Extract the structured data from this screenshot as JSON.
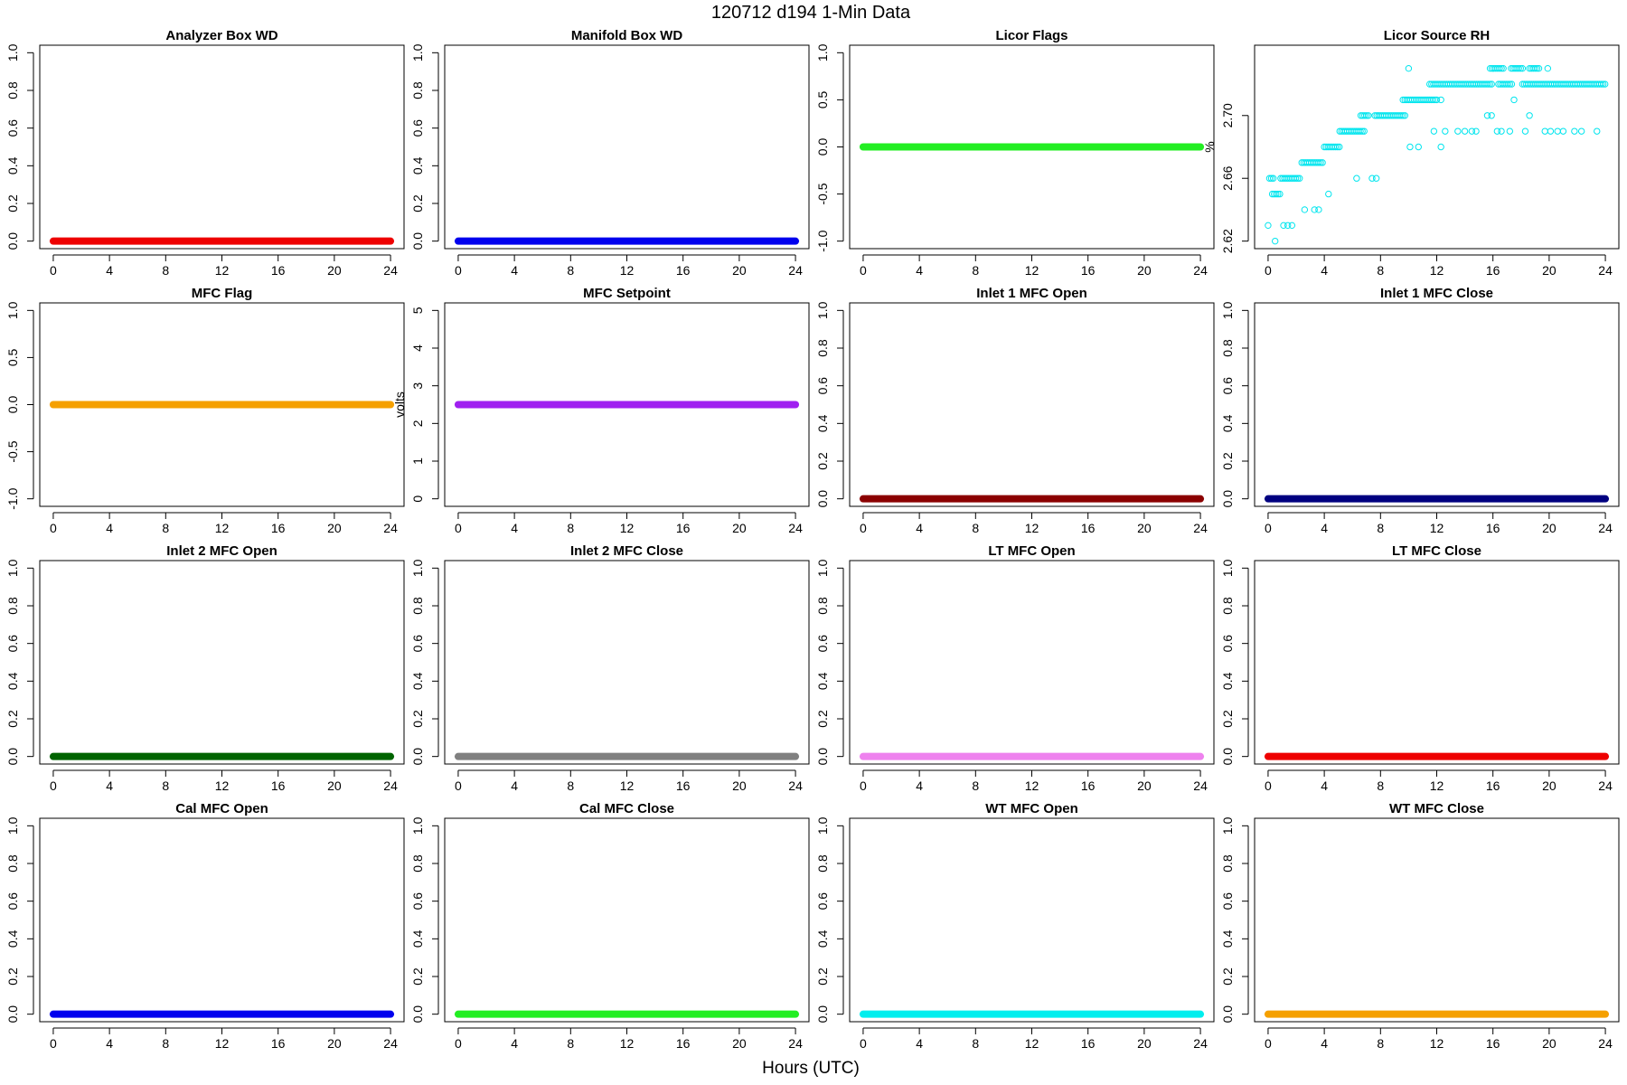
{
  "figure": {
    "title": "120712   d194   1-Min Data",
    "xlabel": "Hours (UTC)"
  },
  "chart_data": [
    {
      "type": "line",
      "title": "Analyzer Box WD",
      "ylabel": "",
      "xlim": [
        0,
        24
      ],
      "ylim": [
        0,
        1
      ],
      "xticks": [
        0,
        4,
        8,
        12,
        16,
        20,
        24
      ],
      "yticks": [
        0.0,
        0.2,
        0.4,
        0.6,
        0.8,
        1.0
      ],
      "ytick_labels": [
        "0.0",
        "0.2",
        "0.4",
        "0.6",
        "0.8",
        "1.0"
      ],
      "grid": false,
      "series": [
        {
          "color": "#ee0000",
          "x": [
            0,
            24
          ],
          "y": [
            0,
            0
          ]
        }
      ]
    },
    {
      "type": "line",
      "title": "Manifold Box WD",
      "ylabel": "",
      "xlim": [
        0,
        24
      ],
      "ylim": [
        0,
        1
      ],
      "xticks": [
        0,
        4,
        8,
        12,
        16,
        20,
        24
      ],
      "yticks": [
        0.0,
        0.2,
        0.4,
        0.6,
        0.8,
        1.0
      ],
      "ytick_labels": [
        "0.0",
        "0.2",
        "0.4",
        "0.6",
        "0.8",
        "1.0"
      ],
      "grid": false,
      "series": [
        {
          "color": "#0000ee",
          "x": [
            0,
            24
          ],
          "y": [
            0,
            0
          ]
        }
      ]
    },
    {
      "type": "line",
      "title": "Licor Flags",
      "ylabel": "",
      "xlim": [
        0,
        24
      ],
      "ylim": [
        -1,
        1
      ],
      "xticks": [
        0,
        4,
        8,
        12,
        16,
        20,
        24
      ],
      "yticks": [
        -1.0,
        -0.5,
        0.0,
        0.5,
        1.0
      ],
      "ytick_labels": [
        "-1.0",
        "-0.5",
        "0.0",
        "0.5",
        "1.0"
      ],
      "grid": false,
      "series": [
        {
          "color": "#22ee22",
          "x": [
            0,
            24
          ],
          "y": [
            0,
            0
          ]
        }
      ]
    },
    {
      "type": "scatter",
      "title": "Licor Source RH",
      "ylabel": "%",
      "xlim": [
        0,
        24
      ],
      "ylim": [
        2.62,
        2.74
      ],
      "xticks": [
        0,
        4,
        8,
        12,
        16,
        20,
        24
      ],
      "yticks": [
        2.62,
        2.66,
        2.7
      ],
      "ytick_labels": [
        "2.62",
        "2.66",
        "2.70"
      ],
      "grid": false,
      "series": [
        {
          "color": "#00e5ee",
          "runs": [
            {
              "x0": 0.1,
              "x1": 0.5,
              "y": 2.66
            },
            {
              "x0": 0.9,
              "x1": 2.3,
              "y": 2.66
            },
            {
              "x0": 0.3,
              "x1": 0.9,
              "y": 2.65
            },
            {
              "x0": 2.4,
              "x1": 3.9,
              "y": 2.67
            },
            {
              "x0": 4.0,
              "x1": 5.2,
              "y": 2.68
            },
            {
              "x0": 5.1,
              "x1": 6.9,
              "y": 2.69
            },
            {
              "x0": 6.6,
              "x1": 7.2,
              "y": 2.7
            },
            {
              "x0": 7.6,
              "x1": 9.8,
              "y": 2.7
            },
            {
              "x0": 9.6,
              "x1": 12.0,
              "y": 2.71
            },
            {
              "x0": 11.5,
              "x1": 16.0,
              "y": 2.72
            },
            {
              "x0": 16.4,
              "x1": 17.4,
              "y": 2.72
            },
            {
              "x0": 18.1,
              "x1": 19.2,
              "y": 2.72
            },
            {
              "x0": 19.3,
              "x1": 24.0,
              "y": 2.72
            },
            {
              "x0": 15.8,
              "x1": 16.8,
              "y": 2.73
            },
            {
              "x0": 17.3,
              "x1": 18.2,
              "y": 2.73
            },
            {
              "x0": 18.6,
              "x1": 19.4,
              "y": 2.73
            }
          ],
          "points": [
            {
              "x": 0.0,
              "y": 2.63
            },
            {
              "x": 0.5,
              "y": 2.62
            },
            {
              "x": 1.1,
              "y": 2.63
            },
            {
              "x": 1.4,
              "y": 2.63
            },
            {
              "x": 1.7,
              "y": 2.63
            },
            {
              "x": 2.6,
              "y": 2.64
            },
            {
              "x": 3.3,
              "y": 2.64
            },
            {
              "x": 3.6,
              "y": 2.64
            },
            {
              "x": 4.3,
              "y": 2.65
            },
            {
              "x": 6.3,
              "y": 2.66
            },
            {
              "x": 7.4,
              "y": 2.66
            },
            {
              "x": 7.7,
              "y": 2.66
            },
            {
              "x": 10.1,
              "y": 2.68
            },
            {
              "x": 10.7,
              "y": 2.68
            },
            {
              "x": 12.3,
              "y": 2.68
            },
            {
              "x": 10.0,
              "y": 2.73
            },
            {
              "x": 11.8,
              "y": 2.69
            },
            {
              "x": 12.6,
              "y": 2.69
            },
            {
              "x": 13.5,
              "y": 2.69
            },
            {
              "x": 14.0,
              "y": 2.69
            },
            {
              "x": 14.5,
              "y": 2.69
            },
            {
              "x": 14.8,
              "y": 2.69
            },
            {
              "x": 12.0,
              "y": 2.71
            },
            {
              "x": 12.3,
              "y": 2.71
            },
            {
              "x": 15.6,
              "y": 2.7
            },
            {
              "x": 15.9,
              "y": 2.7
            },
            {
              "x": 16.3,
              "y": 2.69
            },
            {
              "x": 16.6,
              "y": 2.69
            },
            {
              "x": 17.2,
              "y": 2.69
            },
            {
              "x": 18.3,
              "y": 2.69
            },
            {
              "x": 17.5,
              "y": 2.71
            },
            {
              "x": 18.6,
              "y": 2.7
            },
            {
              "x": 19.7,
              "y": 2.69
            },
            {
              "x": 20.6,
              "y": 2.69
            },
            {
              "x": 21.0,
              "y": 2.69
            },
            {
              "x": 21.8,
              "y": 2.69
            },
            {
              "x": 22.3,
              "y": 2.69
            },
            {
              "x": 23.4,
              "y": 2.69
            },
            {
              "x": 20.1,
              "y": 2.69
            },
            {
              "x": 19.9,
              "y": 2.73
            }
          ]
        }
      ]
    },
    {
      "type": "line",
      "title": "MFC Flag",
      "ylabel": "",
      "xlim": [
        0,
        24
      ],
      "ylim": [
        -1,
        1
      ],
      "xticks": [
        0,
        4,
        8,
        12,
        16,
        20,
        24
      ],
      "yticks": [
        -1.0,
        -0.5,
        0.0,
        0.5,
        1.0
      ],
      "ytick_labels": [
        "-1.0",
        "-0.5",
        "0.0",
        "0.5",
        "1.0"
      ],
      "grid": false,
      "series": [
        {
          "color": "#f5a000",
          "x": [
            0,
            24
          ],
          "y": [
            0,
            0
          ]
        }
      ]
    },
    {
      "type": "line",
      "title": "MFC Setpoint",
      "ylabel": "volts",
      "xlim": [
        0,
        24
      ],
      "ylim": [
        0,
        5
      ],
      "xticks": [
        0,
        4,
        8,
        12,
        16,
        20,
        24
      ],
      "yticks": [
        0,
        1,
        2,
        3,
        4,
        5
      ],
      "ytick_labels": [
        "0",
        "1",
        "2",
        "3",
        "4",
        "5"
      ],
      "grid": false,
      "series": [
        {
          "color": "#a020f0",
          "x": [
            0,
            24
          ],
          "y": [
            2.5,
            2.5
          ]
        }
      ]
    },
    {
      "type": "line",
      "title": "Inlet 1 MFC Open",
      "ylabel": "",
      "xlim": [
        0,
        24
      ],
      "ylim": [
        0,
        1
      ],
      "xticks": [
        0,
        4,
        8,
        12,
        16,
        20,
        24
      ],
      "yticks": [
        0.0,
        0.2,
        0.4,
        0.6,
        0.8,
        1.0
      ],
      "ytick_labels": [
        "0.0",
        "0.2",
        "0.4",
        "0.6",
        "0.8",
        "1.0"
      ],
      "grid": false,
      "series": [
        {
          "color": "#8b0000",
          "x": [
            0,
            24
          ],
          "y": [
            0,
            0
          ]
        }
      ]
    },
    {
      "type": "line",
      "title": "Inlet 1 MFC Close",
      "ylabel": "",
      "xlim": [
        0,
        24
      ],
      "ylim": [
        0,
        1
      ],
      "xticks": [
        0,
        4,
        8,
        12,
        16,
        20,
        24
      ],
      "yticks": [
        0.0,
        0.2,
        0.4,
        0.6,
        0.8,
        1.0
      ],
      "ytick_labels": [
        "0.0",
        "0.2",
        "0.4",
        "0.6",
        "0.8",
        "1.0"
      ],
      "grid": false,
      "series": [
        {
          "color": "#000080",
          "x": [
            0,
            24
          ],
          "y": [
            0,
            0
          ]
        }
      ]
    },
    {
      "type": "line",
      "title": "Inlet 2 MFC Open",
      "ylabel": "",
      "xlim": [
        0,
        24
      ],
      "ylim": [
        0,
        1
      ],
      "xticks": [
        0,
        4,
        8,
        12,
        16,
        20,
        24
      ],
      "yticks": [
        0.0,
        0.2,
        0.4,
        0.6,
        0.8,
        1.0
      ],
      "ytick_labels": [
        "0.0",
        "0.2",
        "0.4",
        "0.6",
        "0.8",
        "1.0"
      ],
      "grid": false,
      "series": [
        {
          "color": "#006400",
          "x": [
            0,
            24
          ],
          "y": [
            0,
            0
          ]
        }
      ]
    },
    {
      "type": "line",
      "title": "Inlet 2 MFC Close",
      "ylabel": "",
      "xlim": [
        0,
        24
      ],
      "ylim": [
        0,
        1
      ],
      "xticks": [
        0,
        4,
        8,
        12,
        16,
        20,
        24
      ],
      "yticks": [
        0.0,
        0.2,
        0.4,
        0.6,
        0.8,
        1.0
      ],
      "ytick_labels": [
        "0.0",
        "0.2",
        "0.4",
        "0.6",
        "0.8",
        "1.0"
      ],
      "grid": false,
      "series": [
        {
          "color": "#808080",
          "x": [
            0,
            24
          ],
          "y": [
            0,
            0
          ]
        }
      ]
    },
    {
      "type": "line",
      "title": "LT MFC Open",
      "ylabel": "",
      "xlim": [
        0,
        24
      ],
      "ylim": [
        0,
        1
      ],
      "xticks": [
        0,
        4,
        8,
        12,
        16,
        20,
        24
      ],
      "yticks": [
        0.0,
        0.2,
        0.4,
        0.6,
        0.8,
        1.0
      ],
      "ytick_labels": [
        "0.0",
        "0.2",
        "0.4",
        "0.6",
        "0.8",
        "1.0"
      ],
      "grid": false,
      "series": [
        {
          "color": "#ee82ee",
          "x": [
            0,
            24
          ],
          "y": [
            0,
            0
          ]
        }
      ]
    },
    {
      "type": "line",
      "title": "LT MFC Close",
      "ylabel": "",
      "xlim": [
        0,
        24
      ],
      "ylim": [
        0,
        1
      ],
      "xticks": [
        0,
        4,
        8,
        12,
        16,
        20,
        24
      ],
      "yticks": [
        0.0,
        0.2,
        0.4,
        0.6,
        0.8,
        1.0
      ],
      "ytick_labels": [
        "0.0",
        "0.2",
        "0.4",
        "0.6",
        "0.8",
        "1.0"
      ],
      "grid": false,
      "series": [
        {
          "color": "#ee0000",
          "x": [
            0,
            24
          ],
          "y": [
            0,
            0
          ]
        }
      ]
    },
    {
      "type": "line",
      "title": "Cal MFC Open",
      "ylabel": "",
      "xlim": [
        0,
        24
      ],
      "ylim": [
        0,
        1
      ],
      "xticks": [
        0,
        4,
        8,
        12,
        16,
        20,
        24
      ],
      "yticks": [
        0.0,
        0.2,
        0.4,
        0.6,
        0.8,
        1.0
      ],
      "ytick_labels": [
        "0.0",
        "0.2",
        "0.4",
        "0.6",
        "0.8",
        "1.0"
      ],
      "grid": false,
      "series": [
        {
          "color": "#0000ee",
          "x": [
            0,
            24
          ],
          "y": [
            0,
            0
          ]
        }
      ]
    },
    {
      "type": "line",
      "title": "Cal MFC Close",
      "ylabel": "",
      "xlim": [
        0,
        24
      ],
      "ylim": [
        0,
        1
      ],
      "xticks": [
        0,
        4,
        8,
        12,
        16,
        20,
        24
      ],
      "yticks": [
        0.0,
        0.2,
        0.4,
        0.6,
        0.8,
        1.0
      ],
      "ytick_labels": [
        "0.0",
        "0.2",
        "0.4",
        "0.6",
        "0.8",
        "1.0"
      ],
      "grid": false,
      "series": [
        {
          "color": "#22ee22",
          "x": [
            0,
            24
          ],
          "y": [
            0,
            0
          ]
        }
      ]
    },
    {
      "type": "line",
      "title": "WT MFC Open",
      "ylabel": "",
      "xlim": [
        0,
        24
      ],
      "ylim": [
        0,
        1
      ],
      "xticks": [
        0,
        4,
        8,
        12,
        16,
        20,
        24
      ],
      "yticks": [
        0.0,
        0.2,
        0.4,
        0.6,
        0.8,
        1.0
      ],
      "ytick_labels": [
        "0.0",
        "0.2",
        "0.4",
        "0.6",
        "0.8",
        "1.0"
      ],
      "grid": false,
      "series": [
        {
          "color": "#00eeee",
          "x": [
            0,
            24
          ],
          "y": [
            0,
            0
          ]
        }
      ]
    },
    {
      "type": "line",
      "title": "WT MFC Close",
      "ylabel": "",
      "xlim": [
        0,
        24
      ],
      "ylim": [
        0,
        1
      ],
      "xticks": [
        0,
        4,
        8,
        12,
        16,
        20,
        24
      ],
      "yticks": [
        0.0,
        0.2,
        0.4,
        0.6,
        0.8,
        1.0
      ],
      "ytick_labels": [
        "0.0",
        "0.2",
        "0.4",
        "0.6",
        "0.8",
        "1.0"
      ],
      "grid": false,
      "series": [
        {
          "color": "#f5a000",
          "x": [
            0,
            24
          ],
          "y": [
            0,
            0
          ]
        }
      ]
    }
  ]
}
